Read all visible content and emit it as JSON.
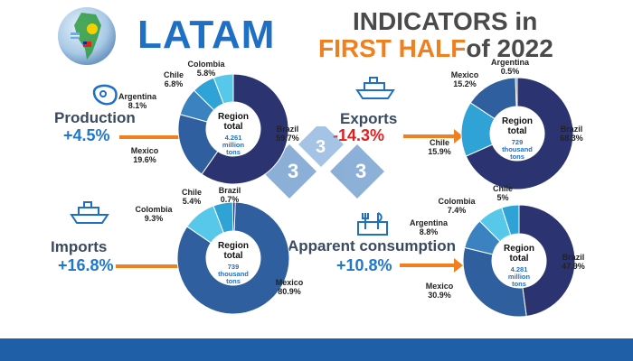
{
  "header": {
    "latam": "LATAM",
    "indicators": "INDICATORS in",
    "first_half": "FIRST HALF",
    "of_year": "of 2022"
  },
  "metrics": {
    "production": {
      "label": "Production",
      "change": "+4.5%"
    },
    "exports": {
      "label": "Exports",
      "change": "-14.3%"
    },
    "imports": {
      "label": "Imports",
      "change": "+16.8%"
    },
    "consumption": {
      "label": "Apparent consumption",
      "change": "+10.8%"
    }
  },
  "center": {
    "title_line1": "Region",
    "title_line2": "total"
  },
  "logo": {
    "digit": "3"
  },
  "colors": {
    "Brazil": "#2b3470",
    "Mexico": "#2f5f9e",
    "Argentina": "#3a83c0",
    "Chile": "#2fa3d6",
    "Colombia": "#58c8ea",
    "accent_orange": "#f07f1f",
    "title_blue": "#1f6fc4",
    "negative_red": "#e02020",
    "footer": "#1f5fa8"
  },
  "chart_data": [
    {
      "type": "pie",
      "name": "production",
      "total_value": "4.261",
      "total_unit_line1": "million",
      "total_unit_line2": "tons",
      "slices": [
        {
          "label": "Brazil",
          "value": 59.7,
          "pct": "59.7%"
        },
        {
          "label": "Mexico",
          "value": 19.6,
          "pct": "19.6%"
        },
        {
          "label": "Argentina",
          "value": 8.1,
          "pct": "8.1%"
        },
        {
          "label": "Chile",
          "value": 6.8,
          "pct": "6.8%"
        },
        {
          "label": "Colombia",
          "value": 5.8,
          "pct": "5.8%"
        }
      ]
    },
    {
      "type": "pie",
      "name": "exports",
      "total_value": "729",
      "total_unit_line1": "thousand",
      "total_unit_line2": "tons",
      "slices": [
        {
          "label": "Brazil",
          "value": 68.3,
          "pct": "68.3%"
        },
        {
          "label": "Chile",
          "value": 15.9,
          "pct": "15.9%"
        },
        {
          "label": "Mexico",
          "value": 15.2,
          "pct": "15.2%"
        },
        {
          "label": "Argentina",
          "value": 0.5,
          "pct": "0.5%"
        }
      ]
    },
    {
      "type": "pie",
      "name": "imports",
      "total_value": "739",
      "total_unit_line1": "thousand",
      "total_unit_line2": "tons",
      "slices": [
        {
          "label": "Mexico",
          "value": 80.9,
          "pct": "80.9%"
        },
        {
          "label": "Colombia",
          "value": 9.3,
          "pct": "9.3%"
        },
        {
          "label": "Chile",
          "value": 5.4,
          "pct": "5.4%"
        },
        {
          "label": "Brazil",
          "value": 0.7,
          "pct": "0.7%"
        }
      ]
    },
    {
      "type": "pie",
      "name": "apparent_consumption",
      "total_value": "4.281",
      "total_unit_line1": "million",
      "total_unit_line2": "tons",
      "slices": [
        {
          "label": "Brazil",
          "value": 47.9,
          "pct": "47.9%"
        },
        {
          "label": "Mexico",
          "value": 30.9,
          "pct": "30.9%"
        },
        {
          "label": "Argentina",
          "value": 8.8,
          "pct": "8.8%"
        },
        {
          "label": "Colombia",
          "value": 7.4,
          "pct": "7.4%"
        },
        {
          "label": "Chile",
          "value": 5,
          "pct": "5%"
        }
      ]
    }
  ]
}
